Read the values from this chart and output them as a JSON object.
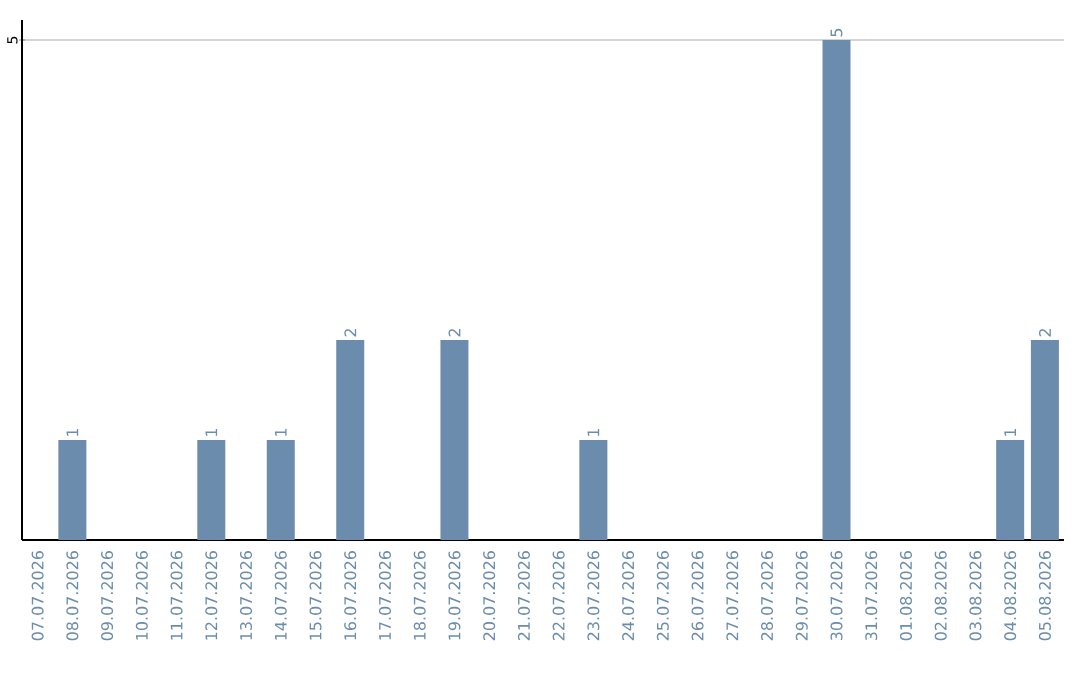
{
  "chart_data": {
    "type": "bar",
    "categories": [
      "07.07.2026",
      "08.07.2026",
      "09.07.2026",
      "10.07.2026",
      "11.07.2026",
      "12.07.2026",
      "13.07.2026",
      "14.07.2026",
      "15.07.2026",
      "16.07.2026",
      "17.07.2026",
      "18.07.2026",
      "19.07.2026",
      "20.07.2026",
      "21.07.2026",
      "22.07.2026",
      "23.07.2026",
      "24.07.2026",
      "25.07.2026",
      "26.07.2026",
      "27.07.2026",
      "28.07.2026",
      "29.07.2026",
      "30.07.2026",
      "31.07.2026",
      "01.08.2026",
      "02.08.2026",
      "03.08.2026",
      "04.08.2026",
      "05.08.2026"
    ],
    "values": [
      0,
      1,
      0,
      0,
      0,
      1,
      0,
      1,
      0,
      2,
      0,
      0,
      2,
      0,
      0,
      0,
      1,
      0,
      0,
      0,
      0,
      0,
      0,
      5,
      0,
      0,
      0,
      0,
      1,
      2
    ],
    "value_labels": [
      null,
      "1",
      null,
      null,
      null,
      "1",
      null,
      "1",
      null,
      "2",
      null,
      null,
      "2",
      null,
      null,
      null,
      "1",
      null,
      null,
      null,
      null,
      null,
      null,
      "5",
      null,
      null,
      null,
      null,
      "1",
      "2"
    ],
    "color": "#6b8cad",
    "ylim": [
      0,
      5.2
    ],
    "yticks": [
      5
    ],
    "grid": "y"
  }
}
